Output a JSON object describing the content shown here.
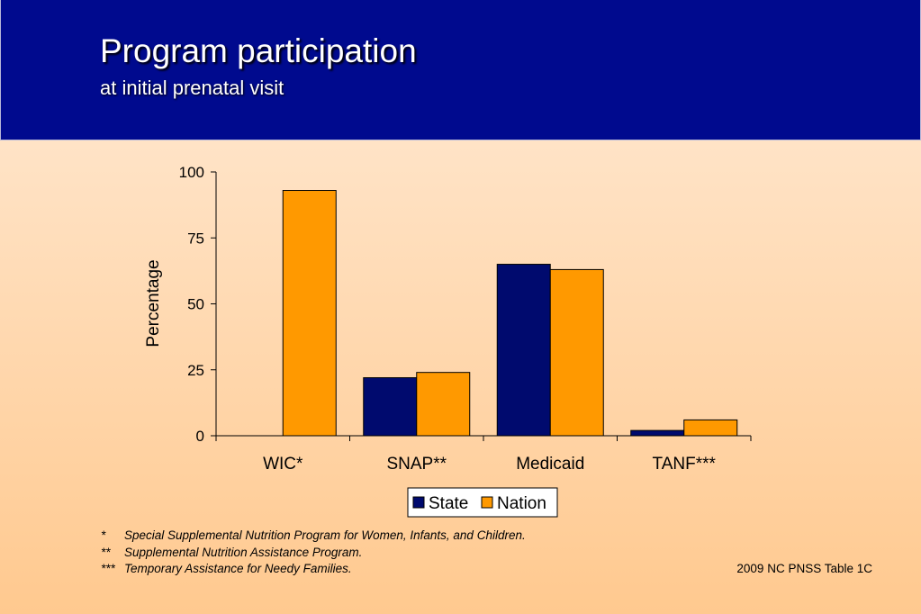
{
  "slide": {
    "title": "Program participation",
    "subtitle": "at initial prenatal visit",
    "footnotes": [
      {
        "mark": "*",
        "text": "Special Supplemental Nutrition Program for Women, Infants, and Children."
      },
      {
        "mark": "**",
        "text": "Supplemental Nutrition Assistance Program."
      },
      {
        "mark": "***",
        "text": "Temporary Assistance for Needy Families."
      }
    ],
    "source": "2009 NC PNSS Table 1C"
  },
  "colors": {
    "header_bg": "#000a8e",
    "state": "#000a6e",
    "nation": "#ff9900"
  },
  "chart_data": {
    "type": "bar",
    "categories": [
      "WIC*",
      "SNAP**",
      "Medicaid",
      "TANF***"
    ],
    "series": [
      {
        "name": "State",
        "values": [
          0,
          22,
          65,
          2
        ]
      },
      {
        "name": "Nation",
        "values": [
          93,
          24,
          63,
          6
        ]
      }
    ],
    "ylabel": "Percentage",
    "ylim": [
      0,
      100
    ],
    "yticks": [
      0,
      25,
      50,
      75,
      100
    ],
    "grid": false,
    "legend": "bottom-center"
  }
}
